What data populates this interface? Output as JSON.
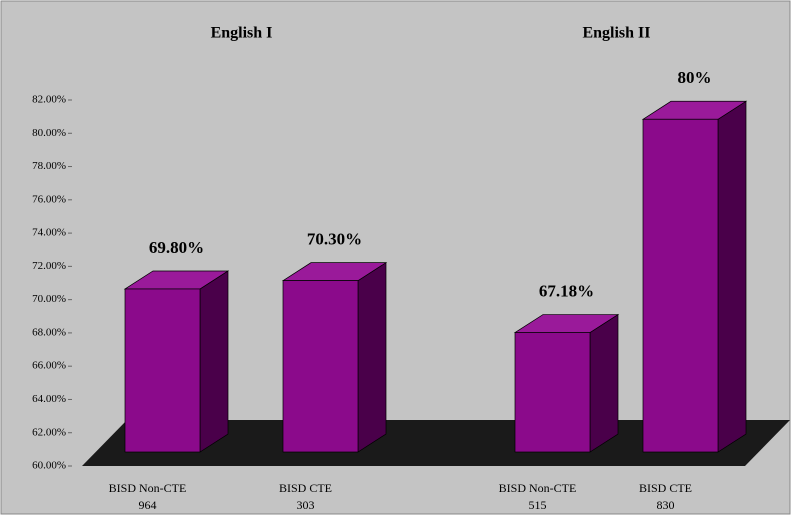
{
  "chart_data": {
    "type": "bar3d",
    "groups": [
      {
        "title": "English I",
        "categories": [
          "BISD Non-CTE",
          "BISD CTE"
        ],
        "counts": [
          964,
          303
        ],
        "values": [
          69.8,
          70.3
        ],
        "value_labels": [
          "69.80%",
          "70.30%"
        ]
      },
      {
        "title": "English II",
        "categories": [
          "BISD Non-CTE",
          "BISD CTE"
        ],
        "counts": [
          515,
          830
        ],
        "values": [
          67.18,
          80
        ],
        "value_labels": [
          "67.18%",
          "80%"
        ]
      }
    ],
    "color": "#8b0a8b",
    "ylim": [
      60,
      82
    ],
    "yticks": [
      {
        "value": 60,
        "label": "60.00%"
      },
      {
        "value": 62,
        "label": "62.00%"
      },
      {
        "value": 64,
        "label": "64.00%"
      },
      {
        "value": 66,
        "label": "66.00%"
      },
      {
        "value": 68,
        "label": "68.00%"
      },
      {
        "value": 70,
        "label": "70.00%"
      },
      {
        "value": 72,
        "label": "72.00%"
      },
      {
        "value": 74,
        "label": "74.00%"
      },
      {
        "value": 76,
        "label": "76.00%"
      },
      {
        "value": 78,
        "label": "78.00%"
      },
      {
        "value": 80,
        "label": "80.00%"
      },
      {
        "value": 82,
        "label": "82.00%"
      }
    ]
  }
}
